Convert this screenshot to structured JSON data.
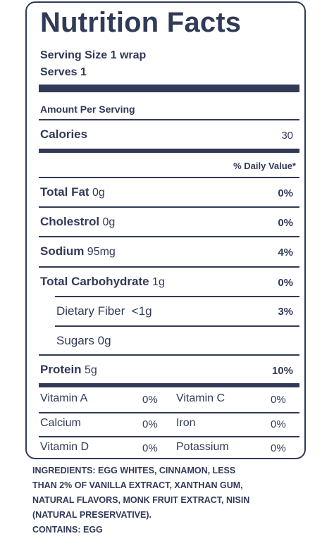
{
  "label": {
    "title": "Nutrition Facts",
    "serving_size": "Serving Size 1 wrap",
    "serves": "Serves 1",
    "amount_per_serving": "Amount Per Serving",
    "calories_label": "Calories",
    "calories_value": "30",
    "daily_value_header": "% Daily Value*",
    "nutrients": [
      {
        "name": "Total Fat",
        "amount": "0g",
        "dv": "0%"
      },
      {
        "name": "Cholestrol",
        "amount": "0g",
        "dv": "0%"
      },
      {
        "name": "Sodium",
        "amount": "95mg",
        "dv": "4%"
      },
      {
        "name": "Total Carbohydrate",
        "amount": "1g",
        "dv": "0%"
      }
    ],
    "sub_nutrients": [
      {
        "name": "Dietary Fiber",
        "amount": "<1g",
        "dv": "3%"
      },
      {
        "name": "Sugars",
        "amount": "0g"
      }
    ],
    "protein": {
      "name": "Protein",
      "amount": "5g",
      "dv": "10%"
    },
    "vitamins": [
      [
        {
          "name": "Vitamin A",
          "dv": "0%"
        },
        {
          "name": "Vitamin C",
          "dv": "0%"
        }
      ],
      [
        {
          "name": "Calcium",
          "dv": "0%"
        },
        {
          "name": "Iron",
          "dv": "0%"
        }
      ],
      [
        {
          "name": "Vitamin D",
          "dv": "0%"
        },
        {
          "name": "Potassium",
          "dv": "0%"
        }
      ]
    ]
  },
  "ingredients": {
    "lines": [
      "INGREDIENTS: EGG WHITES, CINNAMON, LESS",
      "THAN 2% OF VANILLA EXTRACT, XANTHAN GUM,",
      "NATURAL FLAVORS, MONK FRUIT EXTRACT, NISIN",
      "(NATURAL PRESERVATIVE)."
    ],
    "contains": "CONTAINS: EGG"
  },
  "colors": {
    "ink": "#313a57",
    "background": "#ffffff"
  }
}
